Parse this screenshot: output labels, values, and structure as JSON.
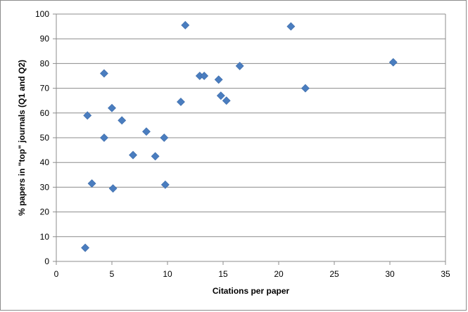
{
  "chart_data": {
    "type": "scatter",
    "title": "",
    "xlabel": "Citations per paper",
    "ylabel": "% papers in \"top\" journals  (Q1 and Q2)",
    "xlim": [
      0,
      35
    ],
    "ylim": [
      0,
      100
    ],
    "xticks": [
      0,
      5,
      10,
      15,
      20,
      25,
      30,
      35
    ],
    "yticks": [
      0,
      10,
      20,
      30,
      40,
      50,
      60,
      70,
      80,
      90,
      100
    ],
    "grid": "horizontal",
    "legend": "none",
    "marker": "diamond",
    "color": "#4a7dbf",
    "series": [
      {
        "x": [
          2.6,
          2.8,
          3.2,
          4.3,
          4.3,
          5.0,
          5.1,
          5.9,
          6.9,
          8.1,
          8.9,
          9.7,
          9.8,
          11.2,
          11.6,
          12.9,
          13.3,
          14.6,
          14.8,
          15.3,
          16.5,
          21.1,
          22.4,
          30.3
        ],
        "y": [
          5.5,
          59,
          31.5,
          76,
          50,
          62,
          29.5,
          57,
          43,
          52.5,
          42.5,
          50,
          31,
          64.5,
          95.5,
          75,
          75,
          73.5,
          67,
          65,
          79,
          95,
          70,
          80.5
        ]
      }
    ]
  }
}
